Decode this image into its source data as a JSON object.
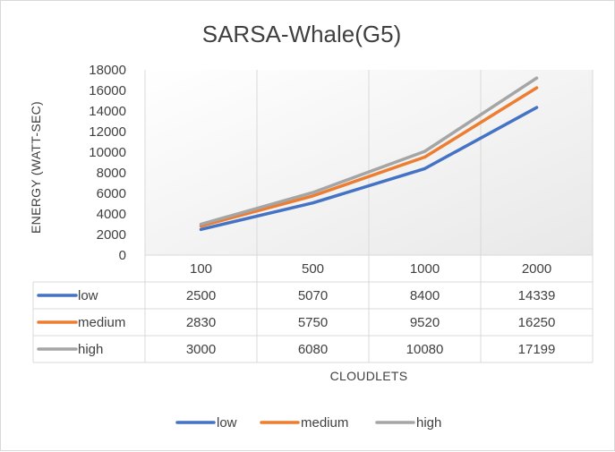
{
  "chart_data": {
    "type": "line",
    "title": "SARSA-Whale(G5)",
    "xlabel": "CLOUDLETS",
    "ylabel": "ENERGY (WATT-SEC)",
    "categories": [
      "100",
      "500",
      "1000",
      "2000"
    ],
    "ylim": [
      0,
      18000
    ],
    "yticks": [
      0,
      2000,
      4000,
      6000,
      8000,
      10000,
      12000,
      14000,
      16000,
      18000
    ],
    "grid": "vertical",
    "legend_position": "bottom",
    "data_table": true,
    "series": [
      {
        "name": "low",
        "color": "#4472c4",
        "values": [
          2500,
          5070,
          8400,
          14339
        ]
      },
      {
        "name": "medium",
        "color": "#ed7d31",
        "values": [
          2830,
          5750,
          9520,
          16250
        ]
      },
      {
        "name": "high",
        "color": "#a5a5a5",
        "values": [
          3000,
          6080,
          10080,
          17199
        ]
      }
    ]
  }
}
